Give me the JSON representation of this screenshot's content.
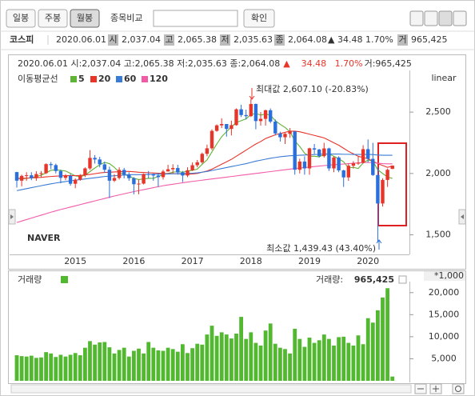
{
  "toolbar": {
    "periods": [
      "일봉",
      "주봉",
      "월봉"
    ],
    "compare_label": "종목비교",
    "confirm": "확인"
  },
  "summary": {
    "name": "코스피",
    "date": "2020.06.01",
    "fields": [
      {
        "key": "시",
        "value": "2,037.04"
      },
      {
        "key": "고",
        "value": "2,065.38"
      },
      {
        "key": "저",
        "value": "2,035.63"
      },
      {
        "key": "종",
        "value": "2,064.08"
      }
    ],
    "change": "▲ 34.48 1.70%",
    "volume_key": "거",
    "volume": "965,425"
  },
  "chart_data": [
    {
      "type": "candlestick",
      "info_line": {
        "prefix": "2020.06.01 시:2,037.04 고:2,065.38 저:2,035.63 종:2,064.08",
        "change": "▲    34.48   1.70%",
        "volume": "거:965,425"
      },
      "legend_title": "이동평균선",
      "scale": "linear",
      "watermark": "NAVER",
      "annotations": [
        "최대값 2,607.10 (-20.83%)",
        "최소값 1,439.43 (43.40%)"
      ],
      "up_color": "#e8352a",
      "down_color": "#2a6fdb",
      "categories": [
        null,
        null,
        null,
        null,
        null,
        null,
        null,
        null,
        null,
        null,
        null,
        null,
        "2015",
        null,
        null,
        null,
        null,
        null,
        null,
        null,
        null,
        null,
        null,
        null,
        "2016",
        null,
        null,
        null,
        null,
        null,
        null,
        null,
        null,
        null,
        null,
        null,
        "2017",
        null,
        null,
        null,
        null,
        null,
        null,
        null,
        null,
        null,
        null,
        null,
        "2018",
        null,
        null,
        null,
        null,
        null,
        null,
        null,
        null,
        null,
        null,
        null,
        "2019",
        null,
        null,
        null,
        null,
        null,
        null,
        null,
        null,
        null,
        null,
        null,
        "2020",
        null,
        null,
        null,
        null,
        null
      ],
      "open": [
        2011,
        1941,
        1980,
        1985,
        1961,
        1995,
        2002,
        2076,
        2068,
        2020,
        1964,
        1981,
        1916,
        1949,
        1985,
        2041,
        2127,
        2114,
        2074,
        2030,
        1941,
        1963,
        2029,
        1991,
        1961,
        1912,
        1917,
        1996,
        1994,
        1983,
        1970,
        2016,
        2034,
        2044,
        2008,
        1983,
        2026,
        2067,
        2091,
        2160,
        2205,
        2347,
        2392,
        2403,
        2363,
        2394,
        2523,
        2476,
        2467,
        2566,
        2427,
        2445,
        2515,
        2423,
        2326,
        2295,
        2323,
        2343,
        2030,
        2097,
        2041,
        2205,
        2195,
        2141,
        2204,
        2041,
        2130,
        2025,
        1968,
        2063,
        2083,
        2087,
        2198,
        2119,
        1987,
        1755,
        1947,
        2037.04
      ],
      "high": [
        2013,
        1990,
        2010,
        2010,
        2018,
        2020,
        2082,
        2093,
        2080,
        2030,
        1995,
        1995,
        1960,
        1995,
        2050,
        2190,
        2150,
        2135,
        2095,
        2055,
        1995,
        2050,
        2045,
        2010,
        1970,
        1950,
        2000,
        2020,
        2000,
        2005,
        2030,
        2070,
        2075,
        2070,
        2020,
        2050,
        2090,
        2110,
        2170,
        2235,
        2360,
        2400,
        2450,
        2390,
        2430,
        2530,
        2560,
        2520,
        2607.1,
        2570,
        2500,
        2520,
        2530,
        2440,
        2340,
        2330,
        2370,
        2345,
        2120,
        2140,
        2210,
        2240,
        2200,
        2250,
        2210,
        2140,
        2140,
        2030,
        2080,
        2100,
        2140,
        2230,
        2277,
        2250,
        2050,
        1960,
        2040,
        2065.38
      ],
      "low": [
        1885,
        1895,
        1940,
        1945,
        1940,
        1970,
        1995,
        2035,
        2000,
        1920,
        1945,
        1900,
        1880,
        1940,
        1970,
        2030,
        2080,
        2050,
        2005,
        1800,
        1930,
        1950,
        1960,
        1940,
        1830,
        1830,
        1910,
        1960,
        1940,
        1890,
        1950,
        2015,
        2000,
        1990,
        1930,
        1970,
        2020,
        2050,
        2080,
        2140,
        2190,
        2340,
        2370,
        2300,
        2310,
        2390,
        2460,
        2440,
        2460,
        2360,
        2390,
        2390,
        2410,
        2310,
        2260,
        2240,
        2290,
        1990,
        2000,
        1990,
        1990,
        2160,
        2130,
        2130,
        2020,
        2010,
        2010,
        1890,
        1940,
        2040,
        2070,
        2080,
        2090,
        1980,
        1439.43,
        1730,
        1890,
        2035.63
      ],
      "close": [
        1941,
        1980,
        1985,
        1961,
        1995,
        2002,
        2076,
        2068,
        2020,
        1964,
        1981,
        1916,
        1949,
        1985,
        2041,
        2127,
        2114,
        2074,
        2030,
        1941,
        1963,
        2029,
        1991,
        1961,
        1912,
        1917,
        1996,
        1994,
        1983,
        1970,
        2016,
        2034,
        2044,
        2008,
        1983,
        2026,
        2067,
        2091,
        2160,
        2205,
        2347,
        2392,
        2403,
        2363,
        2394,
        2523,
        2476,
        2467,
        2566,
        2427,
        2445,
        2515,
        2423,
        2326,
        2295,
        2323,
        2343,
        2030,
        2097,
        2041,
        2205,
        2195,
        2141,
        2204,
        2041,
        2130,
        2025,
        1968,
        2063,
        2083,
        2087,
        2198,
        2119,
        1987,
        1755,
        1947,
        2030,
        2064.08
      ],
      "series": [
        {
          "name": "5",
          "color": "#5fb336",
          "values": [
            1960,
            1955,
            1960,
            1965,
            1975,
            1985,
            2005,
            2025,
            2030,
            2025,
            2020,
            2000,
            1980,
            1975,
            1985,
            2015,
            2045,
            2070,
            2090,
            2080,
            2050,
            2010,
            1990,
            1980,
            1960,
            1950,
            1955,
            1960,
            1960,
            1975,
            1990,
            2000,
            2010,
            2015,
            2010,
            2020,
            2025,
            2035,
            2075,
            2110,
            2175,
            2240,
            2300,
            2340,
            2380,
            2415,
            2430,
            2445,
            2480,
            2490,
            2475,
            2485,
            2475,
            2430,
            2400,
            2375,
            2340,
            2265,
            2220,
            2165,
            2140,
            2140,
            2135,
            2155,
            2160,
            2140,
            2120,
            2095,
            2045,
            2050,
            2040,
            2085,
            2110,
            2100,
            2030,
            2000,
            1970,
            1960
          ]
        },
        {
          "name": "20",
          "color": "#e8352a",
          "values": [
            1960,
            1960,
            1962,
            1964,
            1966,
            1968,
            1972,
            1975,
            1978,
            1980,
            1982,
            1982,
            1982,
            1984,
            1988,
            1992,
            1998,
            2004,
            2008,
            2010,
            2012,
            2014,
            2016,
            2016,
            2014,
            2010,
            2008,
            2006,
            2004,
            2002,
            2000,
            1999,
            1998,
            1997,
            1995,
            1994,
            1996,
            2000,
            2010,
            2020,
            2035,
            2055,
            2075,
            2095,
            2115,
            2140,
            2165,
            2190,
            2215,
            2240,
            2260,
            2285,
            2300,
            2315,
            2325,
            2335,
            2345,
            2345,
            2340,
            2330,
            2320,
            2310,
            2300,
            2290,
            2270,
            2250,
            2230,
            2205,
            2180,
            2160,
            2140,
            2130,
            2120,
            2100,
            2080,
            2065,
            2050,
            2060
          ]
        },
        {
          "name": "60",
          "color": "#3a7bd5",
          "values": [
            1860,
            1868,
            1876,
            1884,
            1892,
            1900,
            1908,
            1915,
            1922,
            1928,
            1934,
            1940,
            1945,
            1950,
            1955,
            1960,
            1965,
            1970,
            1975,
            1978,
            1981,
            1984,
            1987,
            1990,
            1990,
            1990,
            1991,
            1992,
            1993,
            1994,
            1995,
            1996,
            1997,
            1998,
            1999,
            2000,
            2002,
            2005,
            2010,
            2016,
            2024,
            2032,
            2040,
            2048,
            2056,
            2064,
            2072,
            2080,
            2090,
            2100,
            2108,
            2116,
            2124,
            2130,
            2136,
            2140,
            2144,
            2146,
            2148,
            2150,
            2152,
            2154,
            2156,
            2158,
            2158,
            2158,
            2158,
            2156,
            2156,
            2155,
            2155,
            2155,
            2155,
            2154,
            2150,
            2148,
            2148,
            2148
          ]
        },
        {
          "name": "120",
          "color": "#f25aa8",
          "values": [
            1600,
            1612,
            1624,
            1636,
            1648,
            1660,
            1672,
            1684,
            1695,
            1706,
            1716,
            1726,
            1736,
            1746,
            1756,
            1766,
            1776,
            1786,
            1796,
            1806,
            1816,
            1825,
            1834,
            1843,
            1852,
            1860,
            1868,
            1876,
            1884,
            1892,
            1900,
            1906,
            1912,
            1918,
            1924,
            1930,
            1935,
            1940,
            1945,
            1950,
            1955,
            1960,
            1965,
            1970,
            1975,
            1980,
            1985,
            1990,
            1995,
            2000,
            2005,
            2010,
            2015,
            2020,
            2025,
            2030,
            2035,
            2040,
            2044,
            2048,
            2052,
            2056,
            2060,
            2064,
            2068,
            2071,
            2074,
            2077,
            2080,
            2083,
            2086,
            2089,
            2090,
            2088,
            2084,
            2080,
            2078,
            2078
          ]
        }
      ],
      "ylim": [
        1340,
        2840
      ],
      "yticks": [
        {
          "value": 1500,
          "label": "1,500"
        },
        {
          "value": 2000,
          "label": "2,000"
        },
        {
          "value": 2500,
          "label": "2,500"
        }
      ]
    },
    {
      "type": "bar",
      "title": "거래량",
      "color": "#52b830",
      "readout_label": "거래량:",
      "readout": "965,425",
      "unit": "*1,000",
      "values": [
        5800,
        5600,
        5500,
        5700,
        5200,
        5300,
        6500,
        6200,
        5400,
        5900,
        5500,
        5900,
        6300,
        5800,
        7500,
        9000,
        8200,
        8700,
        8800,
        7600,
        6200,
        7000,
        7500,
        5500,
        6800,
        7300,
        6200,
        8800,
        7500,
        6900,
        6800,
        7500,
        7200,
        6600,
        8300,
        6300,
        7400,
        8400,
        8200,
        10500,
        12500,
        10200,
        11000,
        10500,
        9600,
        10700,
        14500,
        9500,
        11000,
        8600,
        8000,
        11400,
        13000,
        8400,
        7500,
        7200,
        6200,
        11800,
        9500,
        7700,
        9800,
        8600,
        9200,
        10500,
        9500,
        8000,
        9900,
        10000,
        8600,
        8000,
        10300,
        8300,
        14200,
        13200,
        16000,
        18900,
        21000,
        965.425
      ],
      "ylim": [
        0,
        22500
      ],
      "yticks": [
        {
          "value": 5000,
          "label": "5,000"
        },
        {
          "value": 10000,
          "label": "10,000"
        },
        {
          "value": 15000,
          "label": "15,000"
        },
        {
          "value": 20000,
          "label": "20,000"
        }
      ]
    }
  ]
}
